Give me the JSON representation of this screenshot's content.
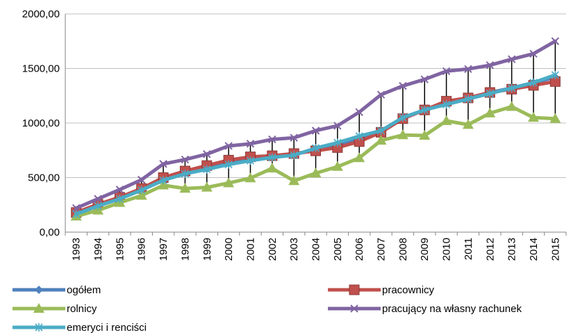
{
  "chart_data": {
    "type": "line",
    "title": "",
    "xlabel": "",
    "ylabel": "",
    "ylim": [
      0,
      2000
    ],
    "y_ticks": [
      "0,00",
      "500,00",
      "1000,00",
      "1500,00",
      "2000,00"
    ],
    "y_tick_values": [
      0,
      500,
      1000,
      1500,
      2000
    ],
    "grid": true,
    "legend_position": "bottom",
    "high_low_lines": true,
    "x": [
      "1993",
      "1994",
      "1995",
      "1996",
      "1997",
      "1998",
      "1999",
      "2000",
      "2001",
      "2002",
      "2003",
      "2004",
      "2005",
      "2006",
      "2007",
      "2008",
      "2009",
      "2010",
      "2011",
      "2012",
      "2013",
      "2014",
      "2015"
    ],
    "series": [
      {
        "name": "ogółem",
        "color": "#4F81BD",
        "marker": "diamond",
        "values": [
          170,
          240,
          310,
          390,
          480,
          540,
          580,
          630,
          660,
          690,
          710,
          760,
          800,
          860,
          920,
          1040,
          1120,
          1180,
          1230,
          1280,
          1320,
          1370,
          1420
        ]
      },
      {
        "name": "pracownicy",
        "color": "#C0504D",
        "marker": "square",
        "values": [
          180,
          255,
          320,
          400,
          500,
          560,
          610,
          660,
          690,
          700,
          720,
          745,
          775,
          830,
          915,
          1040,
          1120,
          1200,
          1230,
          1280,
          1310,
          1345,
          1380
        ]
      },
      {
        "name": "rolnicy",
        "color": "#9BBB59",
        "marker": "triangle",
        "values": [
          145,
          200,
          270,
          335,
          430,
          400,
          410,
          450,
          495,
          585,
          470,
          540,
          600,
          680,
          840,
          890,
          885,
          1020,
          985,
          1090,
          1150,
          1050,
          1040
        ]
      },
      {
        "name": "pracujący na własny rachunek",
        "color": "#8064A2",
        "marker": "x",
        "values": [
          220,
          305,
          390,
          480,
          625,
          665,
          715,
          790,
          810,
          850,
          865,
          930,
          975,
          1100,
          1260,
          1340,
          1400,
          1475,
          1495,
          1530,
          1585,
          1635,
          1750
        ]
      },
      {
        "name": "emeryci i renciści",
        "color": "#4BACC6",
        "marker": "star",
        "values": [
          165,
          240,
          305,
          385,
          475,
          535,
          575,
          620,
          655,
          685,
          705,
          770,
          820,
          880,
          930,
          1050,
          1120,
          1170,
          1220,
          1270,
          1320,
          1370,
          1440
        ]
      }
    ]
  }
}
